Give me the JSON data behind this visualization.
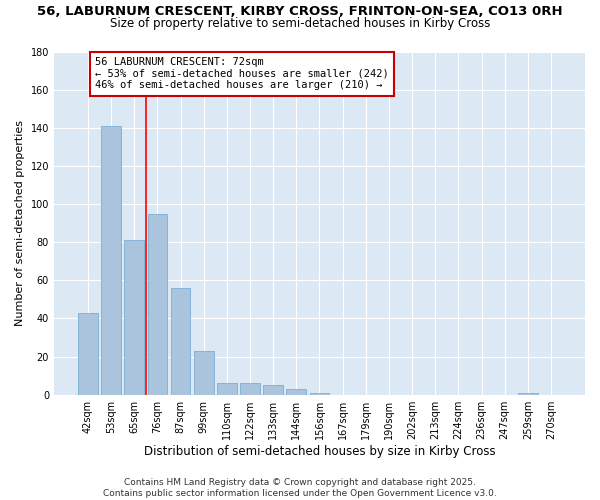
{
  "title1": "56, LABURNUM CRESCENT, KIRBY CROSS, FRINTON-ON-SEA, CO13 0RH",
  "title2": "Size of property relative to semi-detached houses in Kirby Cross",
  "xlabel": "Distribution of semi-detached houses by size in Kirby Cross",
  "ylabel": "Number of semi-detached properties",
  "categories": [
    "42sqm",
    "53sqm",
    "65sqm",
    "76sqm",
    "87sqm",
    "99sqm",
    "110sqm",
    "122sqm",
    "133sqm",
    "144sqm",
    "156sqm",
    "167sqm",
    "179sqm",
    "190sqm",
    "202sqm",
    "213sqm",
    "224sqm",
    "236sqm",
    "247sqm",
    "259sqm",
    "270sqm"
  ],
  "values": [
    43,
    141,
    81,
    95,
    56,
    23,
    6,
    6,
    5,
    3,
    1,
    0,
    0,
    0,
    0,
    0,
    0,
    0,
    0,
    1,
    0
  ],
  "bar_color": "#aac4de",
  "bar_edge_color": "#7bafd4",
  "ylim": [
    0,
    180
  ],
  "yticks": [
    0,
    20,
    40,
    60,
    80,
    100,
    120,
    140,
    160,
    180
  ],
  "annotation_text": "56 LABURNUM CRESCENT: 72sqm\n← 53% of semi-detached houses are smaller (242)\n46% of semi-detached houses are larger (210) →",
  "vline_x": 2.5,
  "box_color": "#cc0000",
  "bg_color": "#dce9f5",
  "footer": "Contains HM Land Registry data © Crown copyright and database right 2025.\nContains public sector information licensed under the Open Government Licence v3.0.",
  "title_fontsize": 9.5,
  "subtitle_fontsize": 8.5,
  "xlabel_fontsize": 8.5,
  "ylabel_fontsize": 8,
  "tick_fontsize": 7,
  "annotation_fontsize": 7.5,
  "footer_fontsize": 6.5
}
